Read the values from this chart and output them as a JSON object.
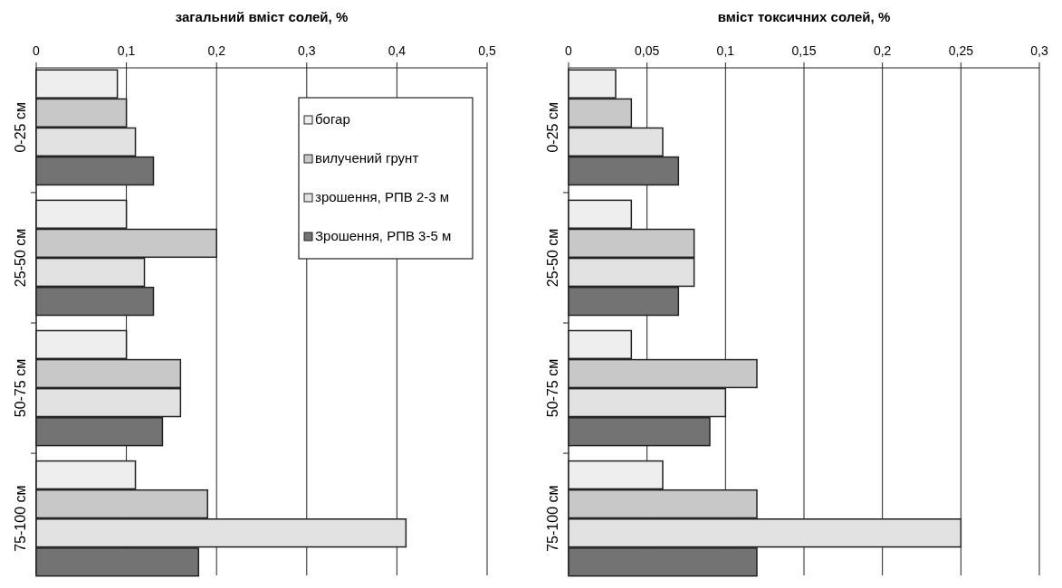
{
  "chart_data": [
    {
      "type": "bar",
      "orientation": "horizontal",
      "title": "загальний вміст солей, %",
      "categories": [
        "0-25 см",
        "25-50 см",
        "50-75 см",
        "75-100 см"
      ],
      "series": [
        {
          "name": "богар",
          "color": "#eeeeee",
          "values": [
            0.09,
            0.1,
            0.1,
            0.11
          ]
        },
        {
          "name": "вилучений грунт",
          "color": "#c8c8c8",
          "values": [
            0.1,
            0.2,
            0.16,
            0.19
          ]
        },
        {
          "name": "зрошення, РПВ 2-3 м",
          "color": "#e2e2e2",
          "values": [
            0.11,
            0.12,
            0.16,
            0.41
          ]
        },
        {
          "name": "Зрошення, РПВ 3-5 м",
          "color": "#737373",
          "values": [
            0.13,
            0.13,
            0.14,
            0.18
          ]
        }
      ],
      "xlim": [
        0,
        0.5
      ],
      "xticks": [
        0,
        {
          "value": 0.1,
          "label": "0,1"
        },
        {
          "value": 0.2,
          "label": "0,2"
        },
        {
          "value": 0.3,
          "label": "0,3"
        },
        {
          "value": 0.4,
          "label": "0,4"
        },
        {
          "value": 0.5,
          "label": "0,5"
        }
      ],
      "grid": "x",
      "legend": "top right"
    },
    {
      "type": "bar",
      "orientation": "horizontal",
      "title": "вміст токсичних солей, %",
      "categories": [
        "0-25 см",
        "25-50 см",
        "50-75 см",
        "75-100 см"
      ],
      "series": [
        {
          "color": "#eeeeee",
          "values": [
            0.03,
            0.04,
            0.04,
            0.06
          ]
        },
        {
          "color": "#c8c8c8",
          "values": [
            0.04,
            0.08,
            0.12,
            0.12
          ]
        },
        {
          "color": "#e2e2e2",
          "values": [
            0.06,
            0.08,
            0.1,
            0.25
          ]
        },
        {
          "color": "#737373",
          "values": [
            0.07,
            0.07,
            0.09,
            0.12
          ]
        }
      ],
      "xlim": [
        0,
        0.3
      ],
      "xticks": [
        0,
        {
          "value": 0.05,
          "label": "0,05"
        },
        {
          "value": 0.1,
          "label": "0,1"
        },
        {
          "value": 0.15,
          "label": "0,15"
        },
        {
          "value": 0.2,
          "label": "0,2"
        },
        {
          "value": 0.25,
          "label": "0,25"
        },
        {
          "value": 0.3,
          "label": "0,3"
        }
      ],
      "grid": "x",
      "legend": false
    }
  ]
}
